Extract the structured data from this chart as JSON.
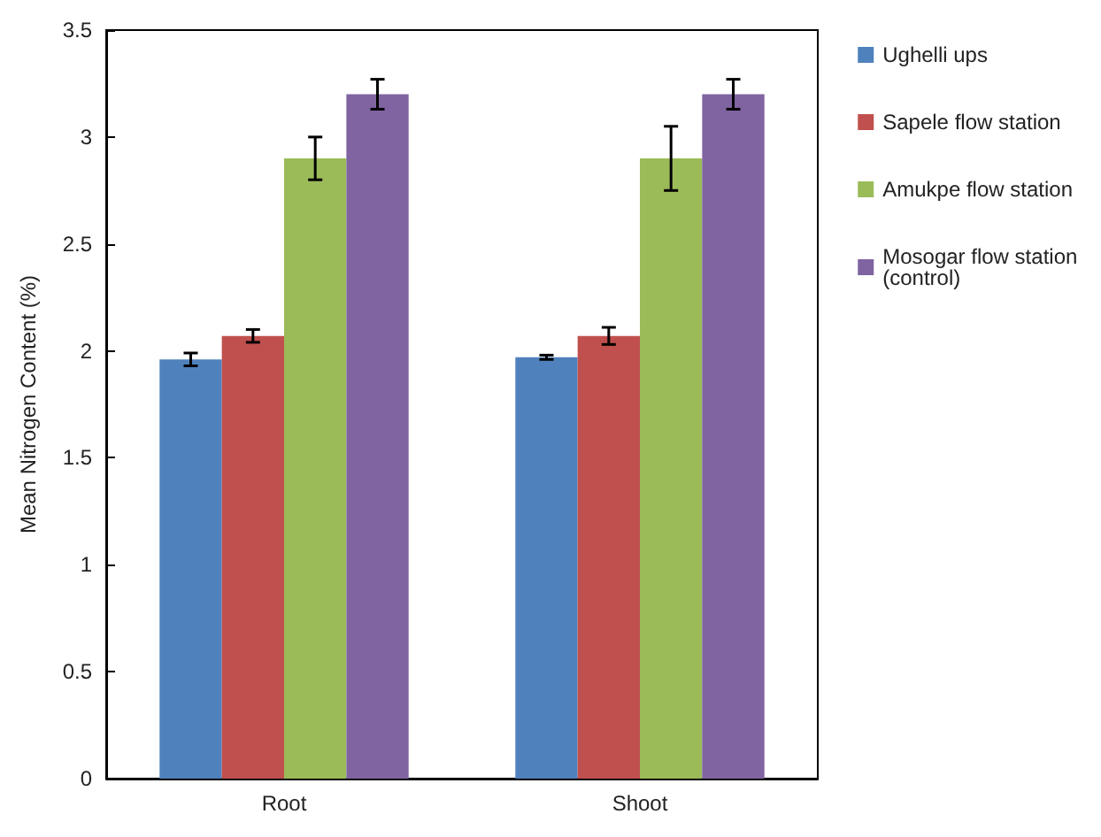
{
  "chart_data": {
    "type": "bar",
    "ylabel": "Mean Nitrogen Content (%)",
    "categories": [
      "Root",
      "Shoot"
    ],
    "series": [
      {
        "name": "Ughelli ups",
        "color": "#4f81bd",
        "values": [
          1.96,
          1.97
        ],
        "errors": [
          0.03,
          0.01
        ]
      },
      {
        "name": "Sapele flow station",
        "color": "#c0504d",
        "values": [
          2.07,
          2.07
        ],
        "errors": [
          0.03,
          0.04
        ]
      },
      {
        "name": "Amukpe flow station",
        "color": "#9bbb59",
        "values": [
          2.9,
          2.9
        ],
        "errors": [
          0.1,
          0.15
        ]
      },
      {
        "name": "Mosogar flow station (control)",
        "color": "#8064a2",
        "values": [
          3.2,
          3.2
        ],
        "errors": [
          0.07,
          0.07
        ]
      }
    ],
    "ylim": [
      0,
      3.5
    ],
    "yticks": [
      0,
      0.5,
      1,
      1.5,
      2,
      2.5,
      3,
      3.5
    ],
    "grid": false,
    "legend": "right"
  }
}
